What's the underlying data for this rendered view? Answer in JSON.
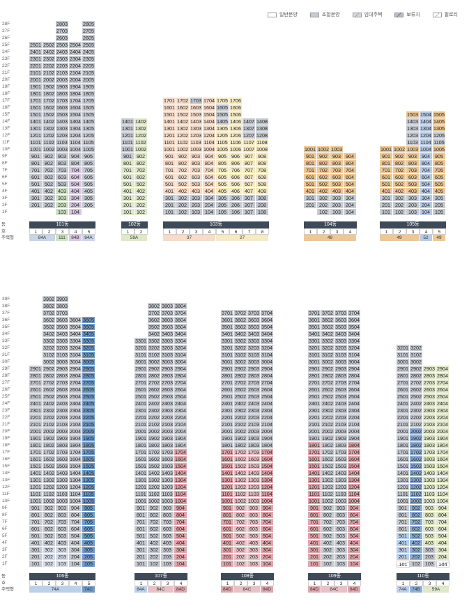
{
  "colors": {
    "general": "#ffffff",
    "union": "#c7cbd2",
    "rental": "#d4d7dc",
    "reserved": "#b8bcc4",
    "pilotis": "#ffffff",
    "t84A": "#c9d5e6",
    "t111": "#cfe3c4",
    "t84B": "#d9c7e3",
    "t59A": "#dfe8c9",
    "t37": "#f6dcc9",
    "t27": "#f5eac4",
    "t49": "#ecc896",
    "t52": "#b9cbe6",
    "t74A": "#bcd0ea",
    "t74C": "#6f9ac7",
    "t84E": "#d6dde8",
    "t84C": "#e6c2c6",
    "t84D": "#e0a7ad",
    "t120": "#f3d0d4",
    "t74B": "#8fb0d6"
  },
  "legend": [
    {
      "label": "일반분양",
      "icon": "general-box"
    },
    {
      "label": "조합분양",
      "icon": "union-box"
    },
    {
      "label": "임대주택",
      "icon": "rental-box"
    },
    {
      "label": "보류지",
      "icon": "reserved-box"
    },
    {
      "label": "필로티",
      "icon": "pilotis-box"
    }
  ],
  "labels": {
    "dong": "동",
    "ho": "호",
    "type": "주택형"
  },
  "sections": [
    {
      "top": 18,
      "gfTop": 300,
      "floorMax": 28,
      "buildings": [
        {
          "name": "101동",
          "x0": 42,
          "units": [
            {
              "ho": "1",
              "min": 2,
              "max": 25,
              "col": "union",
              "special": {}
            },
            {
              "ho": "2",
              "min": 2,
              "max": 25,
              "col": "union",
              "special": {}
            },
            {
              "ho": "3",
              "min": 1,
              "max": 28,
              "col": "union",
              "special": {
                "1": "t111",
                "2": "t111",
                "3": "t111",
                "4": "t111"
              }
            },
            {
              "ho": "4",
              "min": 1,
              "max": 25,
              "col": "union",
              "special": {
                "1": "t84B",
                "2": "t84B",
                "3": "t84B",
                "4": "t84B",
                "5": "t84B",
                "6": "t84B",
                "7": "t84B"
              }
            },
            {
              "ho": "5",
              "min": 2,
              "max": 28,
              "col": "union",
              "special": {}
            }
          ],
          "types": [
            {
              "label": "84A",
              "span": 2,
              "col": "t84A"
            },
            {
              "label": "111",
              "span": 1,
              "col": "t111"
            },
            {
              "label": "84B",
              "span": 1,
              "col": "t84B"
            },
            {
              "label": "84A",
              "span": 1,
              "col": "t84A"
            }
          ]
        },
        {
          "name": "102동",
          "x0": 174,
          "units": [
            {
              "ho": "1",
              "min": 1,
              "max": 14,
              "col": "t59A",
              "special": {
                "9": "union",
                "10": "union",
                "11": "union",
                "12": "union",
                "13": "union",
                "14": "union"
              }
            },
            {
              "ho": "2",
              "min": 1,
              "max": 14,
              "col": "t59A",
              "special": {}
            }
          ],
          "types": [
            {
              "label": "59A",
              "span": 2,
              "col": "t59A"
            }
          ]
        },
        {
          "name": "103동",
          "x0": 234,
          "units": [
            {
              "ho": "1",
              "min": 1,
              "max": 17,
              "col": "t37",
              "special": {
                "1": "union",
                "2": "union",
                "3": "union"
              }
            },
            {
              "ho": "2",
              "min": 1,
              "max": 17,
              "col": "t37",
              "special": {
                "1": "union",
                "2": "union",
                "3": "union"
              }
            },
            {
              "ho": "3",
              "min": 1,
              "max": 17,
              "col": "t37",
              "special": {
                "1": "union",
                "2": "union",
                "3": "union",
                "17": "union"
              }
            },
            {
              "ho": "4",
              "min": 1,
              "max": 17,
              "col": "t37",
              "special": {
                "1": "union",
                "2": "union",
                "3": "union"
              }
            },
            {
              "ho": "5",
              "min": 1,
              "max": 17,
              "col": "t27",
              "special": {
                "1": "union",
                "2": "union",
                "3": "union",
                "14": "union",
                "15": "union",
                "16": "union"
              }
            },
            {
              "ho": "6",
              "min": 1,
              "max": 17,
              "col": "t27",
              "special": {
                "1": "union",
                "2": "union",
                "3": "union"
              }
            },
            {
              "ho": "7",
              "min": 1,
              "max": 14,
              "col": "t27",
              "special": {
                "1": "union",
                "2": "union",
                "3": "union",
                "12": "union",
                "13": "union",
                "14": "union"
              }
            },
            {
              "ho": "8",
              "min": 1,
              "max": 14,
              "col": "t27",
              "special": {
                "1": "union",
                "2": "union",
                "3": "union",
                "12": "union",
                "13": "union",
                "14": "union"
              }
            }
          ],
          "types": [
            {
              "label": "37",
              "span": 4,
              "col": "t37"
            },
            {
              "label": "27",
              "span": 4,
              "col": "t27"
            }
          ]
        },
        {
          "name": "104동",
          "x0": 436,
          "units": [
            {
              "ho": "1",
              "min": 2,
              "max": 10,
              "col": "t49",
              "special": {
                "1": "pilotis",
                "2": "union",
                "3": "union"
              }
            },
            {
              "ho": "2",
              "min": 1,
              "max": 10,
              "col": "t49",
              "special": {
                "1": "union",
                "2": "union",
                "3": "union"
              }
            },
            {
              "ho": "3",
              "min": 1,
              "max": 10,
              "col": "t49",
              "special": {
                "1": "union",
                "2": "union",
                "3": "union"
              }
            },
            {
              "ho": "4",
              "min": 1,
              "max": 9,
              "col": "t49",
              "special": {
                "1": "union",
                "2": "union",
                "3": "union"
              }
            }
          ],
          "types": [
            {
              "label": "49",
              "span": 4,
              "col": "t49"
            }
          ]
        },
        {
          "name": "105동",
          "x0": 545,
          "units": [
            {
              "ho": "1",
              "min": 1,
              "max": 10,
              "col": "t49",
              "special": {
                "1": "union",
                "2": "union",
                "3": "union"
              }
            },
            {
              "ho": "2",
              "min": 1,
              "max": 10,
              "col": "t49",
              "special": {
                "1": "union",
                "2": "union",
                "3": "union"
              }
            },
            {
              "ho": "3",
              "min": 1,
              "max": 15,
              "col": "t49",
              "special": {
                "1": "union",
                "2": "union",
                "3": "union",
                "11": "union",
                "12": "union",
                "13": "union",
                "14": "union"
              }
            },
            {
              "ho": "4",
              "min": 1,
              "max": 15,
              "col": "t52",
              "special": {}
            },
            {
              "ho": "5",
              "min": 1,
              "max": 15,
              "col": "t49",
              "special": {
                "1": "union",
                "2": "union",
                "3": "union",
                "11": "union",
                "12": "union"
              }
            }
          ],
          "types": [
            {
              "label": "49",
              "span": 3,
              "col": "t49"
            },
            {
              "label": "52",
              "span": 1,
              "col": "t52"
            },
            {
              "label": "49",
              "span": 1,
              "col": "t49"
            }
          ]
        }
      ]
    },
    {
      "top": 413,
      "gfTop": 805,
      "floorMax": 39,
      "buildings": [
        {
          "name": "106동",
          "x0": 42,
          "units": [
            {
              "ho": "1",
              "min": 1,
              "max": 29,
              "col": "union",
              "special": {}
            },
            {
              "ho": "2",
              "min": 1,
              "max": 39,
              "col": "union",
              "special": {
                "1": "t84E",
                "2": "t84E",
                "3": "t84E"
              }
            },
            {
              "ho": "3",
              "min": 1,
              "max": 39,
              "col": "union",
              "special": {
                "1": "t84E",
                "2": "t84E",
                "3": "t84E"
              }
            },
            {
              "ho": "4",
              "min": 1,
              "max": 36,
              "col": "union",
              "special": {}
            },
            {
              "ho": "5",
              "min": 1,
              "max": 36,
              "col": "t74C",
              "special": {}
            }
          ],
          "types": [
            {
              "label": "74A",
              "span": 4,
              "col": "t74A"
            },
            {
              "label": "74C",
              "span": 1,
              "col": "t74C"
            }
          ]
        },
        {
          "name": "107동",
          "x0": 193,
          "units": [
            {
              "ho": "1",
              "min": 1,
              "max": 33,
              "col": "union",
              "special": {}
            },
            {
              "ho": "2",
              "min": 1,
              "max": 38,
              "col": "union",
              "special": {}
            },
            {
              "ho": "3",
              "min": 1,
              "max": 38,
              "col": "union",
              "special": {}
            },
            {
              "ho": "4",
              "min": 1,
              "max": 38,
              "col": "union",
              "special": {
                "1": "t84D",
                "2": "t84D",
                "3": "t84D",
                "4": "t84D",
                "5": "t84D",
                "6": "t84D",
                "7": "t84D",
                "8": "t84D",
                "9": "t84D",
                "10": "t84D",
                "11": "t84D",
                "12": "t84D",
                "13": "t84D",
                "14": "t84D",
                "15": "t84D",
                "16": "t84D",
                "17": "t84D"
              }
            }
          ],
          "types": [
            {
              "label": "84A",
              "span": 1,
              "col": "t74A"
            },
            {
              "label": "84C",
              "span": 2,
              "col": "t84C"
            },
            {
              "label": "84D",
              "span": 1,
              "col": "t84D"
            }
          ]
        },
        {
          "name": "108동",
          "x0": 317,
          "units": [
            {
              "ho": "1",
              "min": 1,
              "max": 37,
              "col": "union",
              "special": {
                "1": "t84D",
                "2": "t84D",
                "3": "t84D",
                "4": "t84D",
                "5": "t84D",
                "6": "t84D",
                "7": "t84D",
                "8": "t84D",
                "9": "t84D",
                "10": "t84D",
                "11": "t84D",
                "12": "t84D",
                "13": "t84D",
                "14": "t84D",
                "15": "t84D",
                "16": "t84D",
                "17": "t84D"
              }
            },
            {
              "ho": "2",
              "min": 1,
              "max": 37,
              "col": "union",
              "special": {
                "1": "t84C",
                "2": "t84C",
                "3": "t84C",
                "4": "t84C",
                "5": "t84C",
                "6": "t84C",
                "7": "t84C",
                "8": "t84C",
                "9": "t84C",
                "10": "t84C",
                "11": "t84C",
                "12": "t84C",
                "13": "t84C",
                "14": "t84C",
                "15": "t84C",
                "16": "t84C",
                "17": "t84C"
              }
            },
            {
              "ho": "3",
              "min": 1,
              "max": 37,
              "col": "union",
              "special": {
                "1": "t84C",
                "2": "t84C",
                "3": "t84C",
                "4": "t84C",
                "5": "t84C",
                "6": "t84C",
                "7": "t84C",
                "8": "t84C",
                "9": "t84C",
                "10": "t84C",
                "11": "t84C",
                "12": "t84C",
                "13": "t84C",
                "14": "t84C",
                "15": "t84C",
                "16": "t84C",
                "17": "t84C"
              }
            },
            {
              "ho": "4",
              "min": 1,
              "max": 37,
              "col": "union",
              "special": {
                "1": "t84D",
                "2": "t84D",
                "3": "t84D",
                "4": "t84D",
                "5": "t84D",
                "6": "t84D",
                "7": "t84D",
                "8": "t84D",
                "9": "t84D",
                "10": "t84D",
                "11": "t84D",
                "12": "t84D",
                "13": "t84D",
                "14": "t84D",
                "15": "t84D",
                "16": "t84D",
                "17": "t84D"
              }
            }
          ],
          "types": [
            {
              "label": "84D",
              "span": 1,
              "col": "t84D"
            },
            {
              "label": "84C",
              "span": 2,
              "col": "t84C"
            },
            {
              "label": "84D",
              "span": 1,
              "col": "t84D"
            }
          ]
        },
        {
          "name": "109동",
          "x0": 442,
          "units": [
            {
              "ho": "1",
              "min": 1,
              "max": 37,
              "col": "union",
              "special": {
                "1": "t84D",
                "2": "t84D",
                "3": "t84D",
                "4": "t84D",
                "5": "t84D",
                "6": "t84D",
                "7": "t84D",
                "8": "t84D",
                "9": "t84D",
                "10": "t84D",
                "11": "t84D",
                "12": "t84D",
                "13": "t84D",
                "14": "t84D",
                "15": "t84D",
                "16": "t84D",
                "17": "t84D",
                "18": "t84D"
              }
            },
            {
              "ho": "2",
              "min": 1,
              "max": 37,
              "col": "union",
              "special": {}
            },
            {
              "ho": "3",
              "min": 1,
              "max": 37,
              "col": "union",
              "special": {}
            },
            {
              "ho": "4",
              "min": 1,
              "max": 37,
              "col": "union",
              "special": {
                "1": "t84D",
                "2": "t84D",
                "3": "t84D",
                "4": "t84D",
                "5": "t84D",
                "6": "t84D",
                "7": "t84D",
                "8": "t84D",
                "9": "t84D",
                "10": "t84D",
                "11": "t84D",
                "12": "t84D",
                "13": "t84D",
                "14": "t84D",
                "15": "t84D",
                "16": "t84D",
                "17": "t84D",
                "18": "t84D"
              }
            }
          ],
          "types": [
            {
              "label": "84D",
              "span": 1,
              "col": "t84D"
            },
            {
              "label": "84C",
              "span": 2,
              "col": "t84C"
            },
            {
              "label": "84D",
              "span": 1,
              "col": "t84D"
            }
          ]
        },
        {
          "name": "110동",
          "x0": 569,
          "units": [
            {
              "ho": "1",
              "min": 1,
              "max": 32,
              "col": "union",
              "special": {
                "1": "pilotis",
                "2": "t74A",
                "3": "t74A",
                "4": "t74A",
                "5": "t74A"
              }
            },
            {
              "ho": "2",
              "min": 1,
              "max": 32,
              "col": "t74B",
              "special": {
                "1": "union",
                "21": "union",
                "22": "union",
                "23": "union",
                "24": "union",
                "25": "union",
                "26": "union",
                "27": "union",
                "28": "union",
                "29": "union",
                "30": "union",
                "31": "union",
                "32": "union"
              }
            },
            {
              "ho": "3",
              "min": 1,
              "max": 29,
              "col": "t59A",
              "special": {
                "1": "union",
                "2": "union",
                "3": "union"
              }
            },
            {
              "ho": "4",
              "min": 1,
              "max": 29,
              "col": "t59A",
              "special": {
                "1": "pilotis"
              }
            }
          ],
          "types": [
            {
              "label": "74A",
              "span": 1,
              "col": "t74A"
            },
            {
              "label": "74B",
              "span": 1,
              "col": "t74B"
            },
            {
              "label": "59A",
              "span": 2,
              "col": "t59A"
            }
          ]
        }
      ]
    }
  ]
}
